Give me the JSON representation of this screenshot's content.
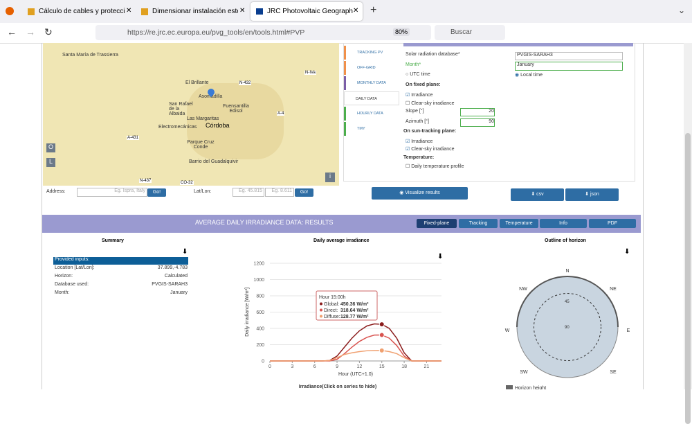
{
  "browser": {
    "tabs": [
      "Cálculo de cables y proteccione",
      "Dimensionar instalación este o",
      "JRC Photovoltaic Geographical"
    ],
    "url": "https://re.jrc.ec.europa.eu/pvg_tools/en/tools.html#PVP",
    "zoom": "80%",
    "search": "Buscar"
  },
  "map": {
    "places": [
      "Santa María de Trassierra",
      "El Brillante",
      "Asomadilla",
      "San Rafael de la Albaida",
      "Fuensantilla Edisol",
      "Las Margaritas",
      "Electromecánicas",
      "Córdoba",
      "Parque Cruz Conde",
      "Barrio del Guadalquivir"
    ],
    "roads": [
      "A-431",
      "N-432",
      "N-IVa",
      "A-4",
      "N-437",
      "CO-32"
    ],
    "layer_buttons": [
      "O",
      "L"
    ],
    "info": "i",
    "address_label": "Address:",
    "address_placeholder": "Eg. Ispra, Italy",
    "address_go": "Go!",
    "latlon_label": "Lat/Lon:",
    "lat_placeholder": "Eg. 45.815",
    "lon_placeholder": "Eg. 8.611",
    "latlon_go": "Go!"
  },
  "tool_tabs": [
    "TRACKING PV",
    "OFF-GRID",
    "MONTHLY DATA",
    "DAILY DATA",
    "HOURLY DATA",
    "TMY"
  ],
  "form": {
    "database_label": "Solar radiation database*",
    "database": "PVGIS-SARAH3",
    "month_label": "Month*",
    "month": "January",
    "utc_time": "UTC time",
    "local_time": "Local time",
    "fixed_plane": "On fixed plane:",
    "fixed_irradiance": "Irradiance",
    "fixed_clear_sky": "Clear-sky irradiance",
    "slope_label": "Slope [°]",
    "slope": "20",
    "azimuth_label": "Azimuth [°]",
    "azimuth": "90",
    "tracking_plane": "On sun-tracking plane:",
    "tracking_irradiance": "Irradiance",
    "tracking_clear_sky": "Clear-sky irradiance",
    "temperature": "Temperature:",
    "temperature_profile": "Daily temperature profile"
  },
  "buttons": {
    "visualize": "Visualize results",
    "csv": "csv",
    "json": "json"
  },
  "results": {
    "title": "AVERAGE DAILY IRRADIANCE DATA: RESULTS",
    "tabs": [
      "Fixed-plane",
      "Tracking",
      "Temperature",
      "Info",
      "PDF"
    ]
  },
  "summary": {
    "title": "Summary",
    "header": "Provided inputs:",
    "rows": [
      [
        "Location [Lat/Lon]:",
        "37.899,-4.783"
      ],
      [
        "Horizon:",
        "Calculated"
      ],
      [
        "Database used:",
        "PVGIS-SARAH3"
      ],
      [
        "Month:",
        "January"
      ]
    ]
  },
  "chart_data": {
    "type": "line",
    "title": "Daily average irradiance",
    "x_label": "Hour (UTC+1.0)",
    "y_label": "Daily irradiance [W/m²]",
    "legend_title": "Irradiance(Click on series to hide)",
    "x": [
      0,
      1,
      2,
      3,
      4,
      5,
      6,
      7,
      8,
      9,
      10,
      11,
      12,
      13,
      14,
      15,
      16,
      17,
      18,
      19,
      20,
      21,
      22,
      23
    ],
    "xlim": [
      0,
      23
    ],
    "xticks": [
      0,
      3,
      6,
      9,
      12,
      15,
      18,
      21
    ],
    "ylim": [
      0,
      1200
    ],
    "yticks": [
      0,
      200,
      400,
      600,
      800,
      1000,
      1200
    ],
    "grid": true,
    "series": [
      {
        "name": "Global",
        "color": "#8b1c1c",
        "values": [
          0,
          0,
          0,
          0,
          0,
          0,
          0,
          0,
          5,
          60,
          170,
          280,
          370,
          430,
          455,
          450.36,
          400,
          280,
          100,
          0,
          0,
          0,
          0,
          0
        ]
      },
      {
        "name": "Direct",
        "color": "#d9534f",
        "values": [
          0,
          0,
          0,
          0,
          0,
          0,
          0,
          0,
          0,
          20,
          90,
          170,
          240,
          290,
          318,
          318.64,
          280,
          190,
          60,
          0,
          0,
          0,
          0,
          0
        ]
      },
      {
        "name": "Diffuse",
        "color": "#f0a070",
        "values": [
          0,
          0,
          0,
          0,
          0,
          0,
          0,
          0,
          5,
          40,
          80,
          100,
          115,
          125,
          128,
          128.77,
          115,
          90,
          40,
          0,
          0,
          0,
          0,
          0
        ]
      }
    ],
    "tooltip": {
      "title": "Hour 15:00h",
      "items": [
        [
          "Global:",
          "450.36 W/m²"
        ],
        [
          "Direct:",
          "318.64 W/m²"
        ],
        [
          "Diffuse:",
          "128.77 W/m²"
        ]
      ]
    }
  },
  "horizon": {
    "title": "Outline of horizon",
    "directions": [
      "N",
      "NE",
      "E",
      "SE",
      "SW",
      "W",
      "NW"
    ],
    "rings": [
      "45",
      "90"
    ],
    "legend": "Horizon height"
  }
}
